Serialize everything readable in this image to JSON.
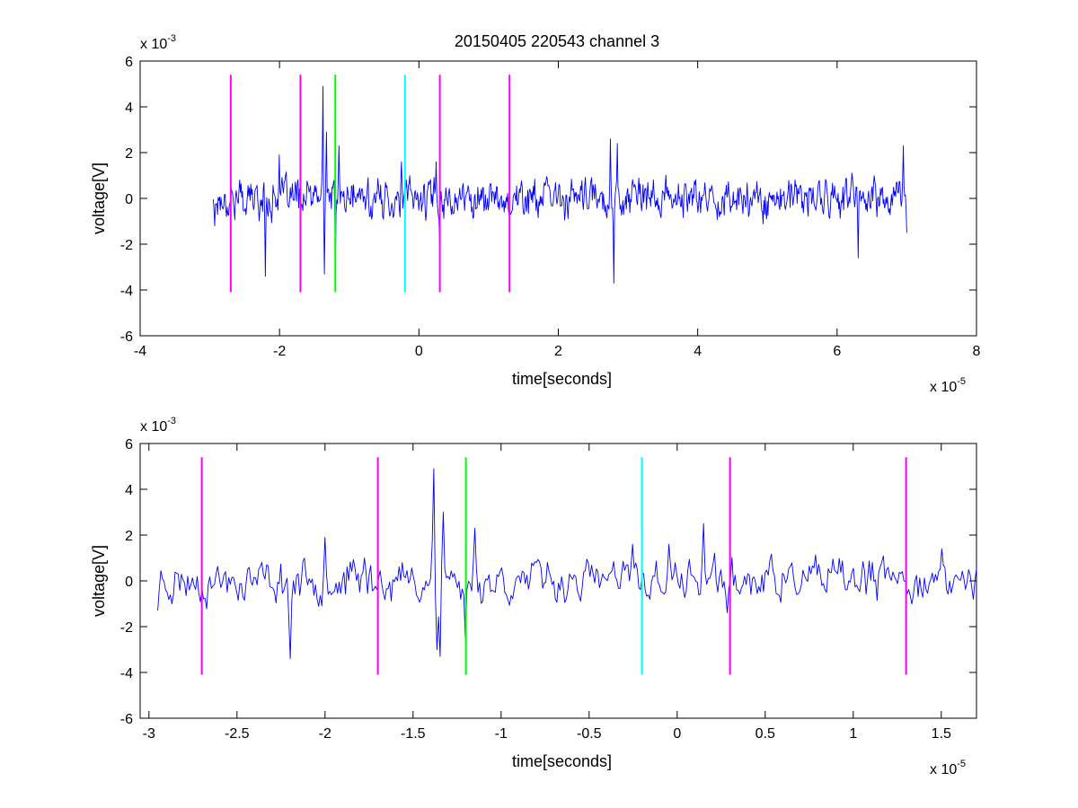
{
  "figure": {
    "title": "20150405 220543 channel 3",
    "background": "#ffffff"
  },
  "chart_data": [
    {
      "type": "line",
      "title": "20150405 220543 channel 3",
      "xlabel": "time[seconds]",
      "ylabel": "voltage[V]",
      "x_multiplier": "x 10",
      "x_exponent": "-5",
      "y_multiplier": "x 10",
      "y_exponent": "-3",
      "xlim": [
        -4,
        8
      ],
      "ylim": [
        -6,
        6
      ],
      "x_scale": 1e-05,
      "y_scale": 0.001,
      "xticks": [
        -4,
        -2,
        0,
        2,
        4,
        6,
        8
      ],
      "xtick_labels": [
        "-4",
        "-2",
        "0",
        "2",
        "4",
        "6",
        "8"
      ],
      "yticks": [
        -6,
        -4,
        -2,
        0,
        2,
        4,
        6
      ],
      "ytick_labels": [
        "-6",
        "-4",
        "-2",
        "0",
        "2",
        "4",
        "6"
      ],
      "grid": false,
      "series": [
        {
          "color": "#0000ff",
          "signal": {
            "x_start": -2.95,
            "x_end": 7.0,
            "points": 1000,
            "noise_amplitude": 0.5,
            "seed": 17,
            "spikes": [
              {
                "x": -2.93,
                "y": -1.2
              },
              {
                "x": -2.2,
                "y": -3.4
              },
              {
                "x": -2.0,
                "y": 1.9
              },
              {
                "x": -1.38,
                "y": 4.9
              },
              {
                "x": -1.33,
                "y": 2.9
              },
              {
                "x": -1.36,
                "y": -3.3
              },
              {
                "x": -1.2,
                "y": -2.6
              },
              {
                "x": -1.15,
                "y": 2.3
              },
              {
                "x": -0.25,
                "y": 1.6
              },
              {
                "x": 0.25,
                "y": 1.6
              },
              {
                "x": 0.3,
                "y": -2.0
              },
              {
                "x": 2.75,
                "y": 2.6
              },
              {
                "x": 2.8,
                "y": -3.7
              },
              {
                "x": 2.85,
                "y": 2.4
              },
              {
                "x": 6.3,
                "y": -2.6
              },
              {
                "x": 6.95,
                "y": 2.3
              },
              {
                "x": 7.0,
                "y": -1.5
              }
            ]
          }
        }
      ],
      "markers": [
        {
          "x": -2.7,
          "y_from": -4.1,
          "y_to": 5.4,
          "color": "#ff00ff"
        },
        {
          "x": -1.7,
          "y_from": -4.1,
          "y_to": 5.4,
          "color": "#ff00ff"
        },
        {
          "x": -1.2,
          "y_from": -4.1,
          "y_to": 5.4,
          "color": "#00ff00"
        },
        {
          "x": -0.2,
          "y_from": -4.1,
          "y_to": 5.4,
          "color": "#00ffff"
        },
        {
          "x": 0.3,
          "y_from": -4.1,
          "y_to": 5.4,
          "color": "#ff00ff"
        },
        {
          "x": 1.3,
          "y_from": -4.1,
          "y_to": 5.4,
          "color": "#ff00ff"
        }
      ]
    },
    {
      "type": "line",
      "title": "",
      "xlabel": "time[seconds]",
      "ylabel": "voltage[V]",
      "x_multiplier": "x 10",
      "x_exponent": "-5",
      "y_multiplier": "x 10",
      "y_exponent": "-3",
      "xlim": [
        -3.05,
        1.7
      ],
      "ylim": [
        -6,
        6
      ],
      "x_scale": 1e-05,
      "y_scale": 0.001,
      "xticks": [
        -3,
        -2.5,
        -2,
        -1.5,
        -1,
        -0.5,
        0,
        0.5,
        1,
        1.5
      ],
      "xtick_labels": [
        "-3",
        "-2.5",
        "-2",
        "-1.5",
        "-1",
        "-0.5",
        "0",
        "0.5",
        "1",
        "1.5"
      ],
      "yticks": [
        -6,
        -4,
        -2,
        0,
        2,
        4,
        6
      ],
      "ytick_labels": [
        "-6",
        "-4",
        "-2",
        "0",
        "2",
        "4",
        "6"
      ],
      "grid": false,
      "series": [
        {
          "color": "#0000ff",
          "signal": {
            "x_start": -2.95,
            "x_end": 1.7,
            "points": 520,
            "noise_amplitude": 0.55,
            "seed": 23,
            "spikes": [
              {
                "x": -2.95,
                "y": -1.3
              },
              {
                "x": -2.2,
                "y": -3.4
              },
              {
                "x": -2.0,
                "y": 1.9
              },
              {
                "x": -1.78,
                "y": 1.0
              },
              {
                "x": -1.38,
                "y": 4.9
              },
              {
                "x": -1.36,
                "y": -3.0
              },
              {
                "x": -1.35,
                "y": -3.3
              },
              {
                "x": -1.33,
                "y": 3.0
              },
              {
                "x": -1.2,
                "y": -2.6
              },
              {
                "x": -1.15,
                "y": 2.3
              },
              {
                "x": -0.25,
                "y": 1.6
              },
              {
                "x": -0.05,
                "y": 1.6
              },
              {
                "x": 0.15,
                "y": 2.5
              },
              {
                "x": 0.28,
                "y": -1.4
              },
              {
                "x": 1.5,
                "y": 1.4
              },
              {
                "x": 1.68,
                "y": -0.8
              }
            ]
          }
        }
      ],
      "markers": [
        {
          "x": -2.7,
          "y_from": -4.1,
          "y_to": 5.4,
          "color": "#ff00ff"
        },
        {
          "x": -1.7,
          "y_from": -4.1,
          "y_to": 5.4,
          "color": "#ff00ff"
        },
        {
          "x": -1.2,
          "y_from": -4.1,
          "y_to": 5.4,
          "color": "#00ff00"
        },
        {
          "x": -0.2,
          "y_from": -4.1,
          "y_to": 5.4,
          "color": "#00ffff"
        },
        {
          "x": 0.3,
          "y_from": -4.1,
          "y_to": 5.4,
          "color": "#ff00ff"
        },
        {
          "x": 1.3,
          "y_from": -4.1,
          "y_to": 5.4,
          "color": "#ff00ff"
        }
      ]
    }
  ]
}
